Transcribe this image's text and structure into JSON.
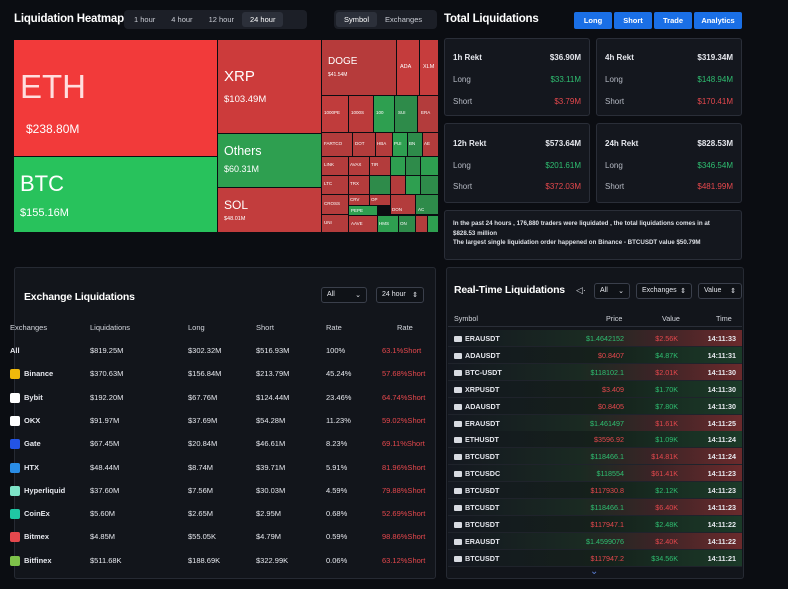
{
  "heatmap": {
    "title": "Liquidation Heatmap",
    "time_tabs": [
      "1 hour",
      "4 hour",
      "12 hour",
      "24 hour"
    ],
    "active_tab": "24 hour",
    "view_tabs": [
      "Symbol",
      "Exchanges"
    ],
    "tiles": {
      "eth": {
        "name": "ETH",
        "value": "$238.80M"
      },
      "btc": {
        "name": "BTC",
        "value": "$155.16M"
      },
      "xrp": {
        "name": "XRP",
        "value": "$103.49M"
      },
      "others": {
        "name": "Others",
        "value": "$60.31M"
      },
      "sol": {
        "name": "SOL",
        "value": "$48.01M"
      },
      "doge": {
        "name": "DOGE",
        "value": "$41.54M"
      },
      "small": [
        "ADA",
        "XLM",
        "1000PE",
        "1000S",
        "100",
        "SUI",
        "ERA",
        "FARTCO",
        "DOT",
        "HBA",
        "PUI",
        "BN",
        "AE",
        "LINK",
        "AVAX",
        "TIR",
        "LTC",
        "TRX",
        "CROSS",
        "CRV",
        "OP",
        "PEPE",
        "DON",
        "AC",
        "UNI",
        "AAVE",
        "HMS",
        "ON"
      ]
    },
    "colors": {
      "green": "#28c25c",
      "red": "#f23a3a",
      "dark_red": "#b33c3c",
      "mid_green": "#2e8b4a"
    }
  },
  "total": {
    "title": "Total Liquidations",
    "buttons": [
      "Long",
      "Short",
      "Trade",
      "Analytics"
    ],
    "cards": [
      {
        "label": "1h Rekt",
        "total": "$36.90M",
        "long": "$33.11M",
        "short": "$3.79M"
      },
      {
        "label": "4h Rekt",
        "total": "$319.34M",
        "long": "$148.94M",
        "short": "$170.41M"
      },
      {
        "label": "12h Rekt",
        "total": "$573.64M",
        "long": "$201.61M",
        "short": "$372.03M"
      },
      {
        "label": "24h Rekt",
        "total": "$828.53M",
        "long": "$346.54M",
        "short": "$481.99M"
      }
    ],
    "long_label": "Long",
    "short_label": "Short",
    "summary_1": "In the past 24 hours , 176,880 traders were liquidated , the total liquidations comes in at $828.53 million",
    "summary_2": "The largest single liquidation order happened on Binance - BTCUSDT value $50.79M"
  },
  "exchange": {
    "title": "Exchange Liquidations",
    "filter": "All",
    "period": "24 hour",
    "headers": [
      "Exchanges",
      "Liquidations",
      "Long",
      "Short",
      "Rate",
      "Rate"
    ],
    "rows": [
      {
        "name": "All",
        "liq": "$819.25M",
        "long": "$302.32M",
        "short": "$516.93M",
        "rate": "100%",
        "rate2": "63.1%Short",
        "icon": "none"
      },
      {
        "name": "Binance",
        "liq": "$370.63M",
        "long": "$156.84M",
        "short": "$213.79M",
        "rate": "45.24%",
        "rate2": "57.68%Short",
        "icon": "#f0b90b"
      },
      {
        "name": "Bybit",
        "liq": "$192.20M",
        "long": "$67.76M",
        "short": "$124.44M",
        "rate": "23.46%",
        "rate2": "64.74%Short",
        "icon": "#ffffff"
      },
      {
        "name": "OKX",
        "liq": "$91.97M",
        "long": "$37.69M",
        "short": "$54.28M",
        "rate": "11.23%",
        "rate2": "59.02%Short",
        "icon": "#ffffff"
      },
      {
        "name": "Gate",
        "liq": "$67.45M",
        "long": "$20.84M",
        "short": "$46.61M",
        "rate": "8.23%",
        "rate2": "69.11%Short",
        "icon": "#2354e6"
      },
      {
        "name": "HTX",
        "liq": "$48.44M",
        "long": "$8.74M",
        "short": "$39.71M",
        "rate": "5.91%",
        "rate2": "81.96%Short",
        "icon": "#2a8de6"
      },
      {
        "name": "Hyperliquid",
        "liq": "$37.60M",
        "long": "$7.56M",
        "short": "$30.03M",
        "rate": "4.59%",
        "rate2": "79.88%Short",
        "icon": "#7ee3c8"
      },
      {
        "name": "CoinEx",
        "liq": "$5.60M",
        "long": "$2.65M",
        "short": "$2.95M",
        "rate": "0.68%",
        "rate2": "52.69%Short",
        "icon": "#1fc7a4"
      },
      {
        "name": "Bitmex",
        "liq": "$4.85M",
        "long": "$55.05K",
        "short": "$4.79M",
        "rate": "0.59%",
        "rate2": "98.86%Short",
        "icon": "#e5484d"
      },
      {
        "name": "Bitfinex",
        "liq": "$511.68K",
        "long": "$188.69K",
        "short": "$322.99K",
        "rate": "0.06%",
        "rate2": "63.12%Short",
        "icon": "#7ec24a"
      }
    ]
  },
  "realtime": {
    "title": "Real-Time Liquidations",
    "filters": [
      "All",
      "Exchanges",
      "Value"
    ],
    "headers": [
      "Symbol",
      "Price",
      "Value",
      "Time"
    ],
    "rows": [
      {
        "sym": "ERAUSDT",
        "price": "$1.4642152",
        "value": "$2.56K",
        "time": "14:11:33",
        "side": "long"
      },
      {
        "sym": "ADAUSDT",
        "price": "$0.8407",
        "value": "$4.87K",
        "time": "14:11:31",
        "side": "short"
      },
      {
        "sym": "BTC-USDT",
        "price": "$118102.1",
        "value": "$2.01K",
        "time": "14:11:30",
        "side": "long"
      },
      {
        "sym": "XRPUSDT",
        "price": "$3.409",
        "value": "$1.70K",
        "time": "14:11:30",
        "side": "short"
      },
      {
        "sym": "ADAUSDT",
        "price": "$0.8405",
        "value": "$7.80K",
        "time": "14:11:30",
        "side": "short"
      },
      {
        "sym": "ERAUSDT",
        "price": "$1.461497",
        "value": "$1.61K",
        "time": "14:11:25",
        "side": "long"
      },
      {
        "sym": "ETHUSDT",
        "price": "$3596.92",
        "value": "$1.09K",
        "time": "14:11:24",
        "side": "short"
      },
      {
        "sym": "BTCUSDT",
        "price": "$118466.1",
        "value": "$14.81K",
        "time": "14:11:24",
        "side": "long"
      },
      {
        "sym": "BTCUSDC",
        "price": "$118554",
        "value": "$61.41K",
        "time": "14:11:23",
        "side": "long"
      },
      {
        "sym": "BTCUSDT",
        "price": "$117930.8",
        "value": "$2.12K",
        "time": "14:11:23",
        "side": "short"
      },
      {
        "sym": "BTCUSDT",
        "price": "$118466.1",
        "value": "$6.40K",
        "time": "14:11:23",
        "side": "long"
      },
      {
        "sym": "BTCUSDT",
        "price": "$117947.1",
        "value": "$2.48K",
        "time": "14:11:22",
        "side": "short"
      },
      {
        "sym": "ERAUSDT",
        "price": "$1.4599076",
        "value": "$2.40K",
        "time": "14:11:22",
        "side": "long"
      },
      {
        "sym": "BTCUSDT",
        "price": "$117947.2",
        "value": "$34.56K",
        "time": "14:11:21",
        "side": "short"
      }
    ]
  }
}
